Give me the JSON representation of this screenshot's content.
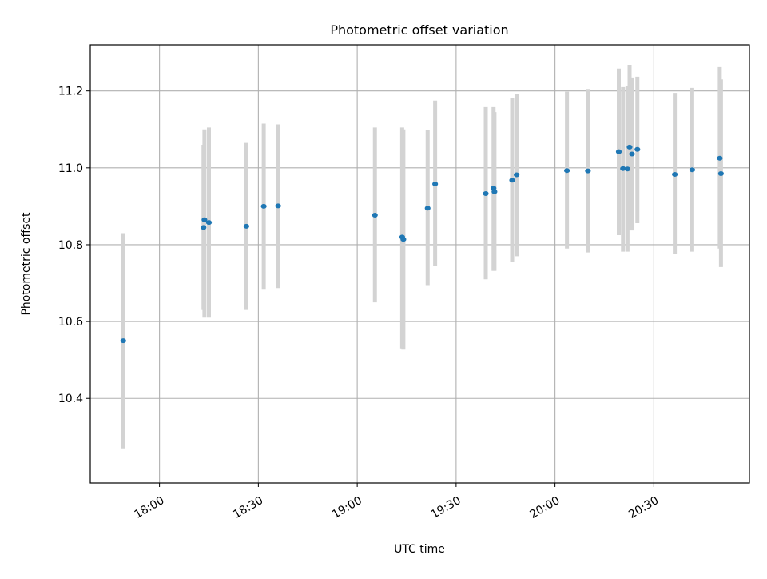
{
  "chart_data": {
    "type": "scatter",
    "title": "Photometric offset variation",
    "xlabel": "UTC time",
    "ylabel": "Photometric offset",
    "x_tick_labels": [
      "18:00",
      "18:30",
      "19:00",
      "19:30",
      "20:00",
      "20:30"
    ],
    "x_tick_values": [
      "18:00",
      "18:30",
      "19:00",
      "19:30",
      "20:00",
      "20:30"
    ],
    "y_tick_labels": [
      "10.4",
      "10.6",
      "10.8",
      "11.0",
      "11.2"
    ],
    "y_tick_values": [
      10.4,
      10.6,
      10.8,
      11.0,
      11.2
    ],
    "xlim": [
      "17:39",
      "20:59"
    ],
    "ylim": [
      10.18,
      11.32
    ],
    "grid": true,
    "point_color": "#1f77b4",
    "errorbar_color": "#d3d3d3",
    "points": [
      {
        "x": "17:49",
        "y": 10.55,
        "ylow": 10.27,
        "yhigh": 10.83
      },
      {
        "x": "18:13",
        "y": 10.845,
        "ylow": 10.63,
        "yhigh": 11.06
      },
      {
        "x": "18:14",
        "y": 10.865,
        "ylow": 10.61,
        "yhigh": 11.1
      },
      {
        "x": "18:15",
        "y": 10.858,
        "ylow": 10.61,
        "yhigh": 11.105
      },
      {
        "x": "18:26",
        "y": 10.848,
        "ylow": 10.63,
        "yhigh": 11.065
      },
      {
        "x": "18:32",
        "y": 10.9,
        "ylow": 10.685,
        "yhigh": 11.115
      },
      {
        "x": "18:36",
        "y": 10.901,
        "ylow": 10.687,
        "yhigh": 11.113
      },
      {
        "x": "19:05",
        "y": 10.877,
        "ylow": 10.65,
        "yhigh": 11.105
      },
      {
        "x": "19:14",
        "y": 10.82,
        "ylow": 10.53,
        "yhigh": 11.105
      },
      {
        "x": "19:14",
        "y": 10.814,
        "ylow": 10.527,
        "yhigh": 11.1
      },
      {
        "x": "19:21",
        "y": 10.895,
        "ylow": 10.695,
        "yhigh": 11.098
      },
      {
        "x": "19:24",
        "y": 10.958,
        "ylow": 10.745,
        "yhigh": 11.175
      },
      {
        "x": "19:39",
        "y": 10.933,
        "ylow": 10.71,
        "yhigh": 11.158
      },
      {
        "x": "19:41",
        "y": 10.947,
        "ylow": 10.732,
        "yhigh": 11.158
      },
      {
        "x": "19:42",
        "y": 10.938,
        "ylow": 10.732,
        "yhigh": 11.145
      },
      {
        "x": "19:47",
        "y": 10.968,
        "ylow": 10.755,
        "yhigh": 11.182
      },
      {
        "x": "19:48",
        "y": 10.982,
        "ylow": 10.77,
        "yhigh": 11.193
      },
      {
        "x": "20:04",
        "y": 10.993,
        "ylow": 10.79,
        "yhigh": 11.198
      },
      {
        "x": "20:10",
        "y": 10.992,
        "ylow": 10.78,
        "yhigh": 11.205
      },
      {
        "x": "20:19",
        "y": 11.042,
        "ylow": 10.825,
        "yhigh": 11.258
      },
      {
        "x": "20:21",
        "y": 10.998,
        "ylow": 10.782,
        "yhigh": 11.21
      },
      {
        "x": "20:22",
        "y": 10.997,
        "ylow": 10.782,
        "yhigh": 11.212
      },
      {
        "x": "20:23",
        "y": 11.036,
        "ylow": 10.837,
        "yhigh": 11.235
      },
      {
        "x": "20:23",
        "y": 11.054,
        "ylow": 10.838,
        "yhigh": 11.268
      },
      {
        "x": "20:25",
        "y": 11.048,
        "ylow": 10.856,
        "yhigh": 11.237
      },
      {
        "x": "20:36",
        "y": 10.983,
        "ylow": 10.775,
        "yhigh": 11.195
      },
      {
        "x": "20:42",
        "y": 10.995,
        "ylow": 10.782,
        "yhigh": 11.208
      },
      {
        "x": "20:50",
        "y": 11.025,
        "ylow": 10.79,
        "yhigh": 11.262
      },
      {
        "x": "20:50",
        "y": 10.985,
        "ylow": 10.742,
        "yhigh": 11.23
      }
    ]
  }
}
